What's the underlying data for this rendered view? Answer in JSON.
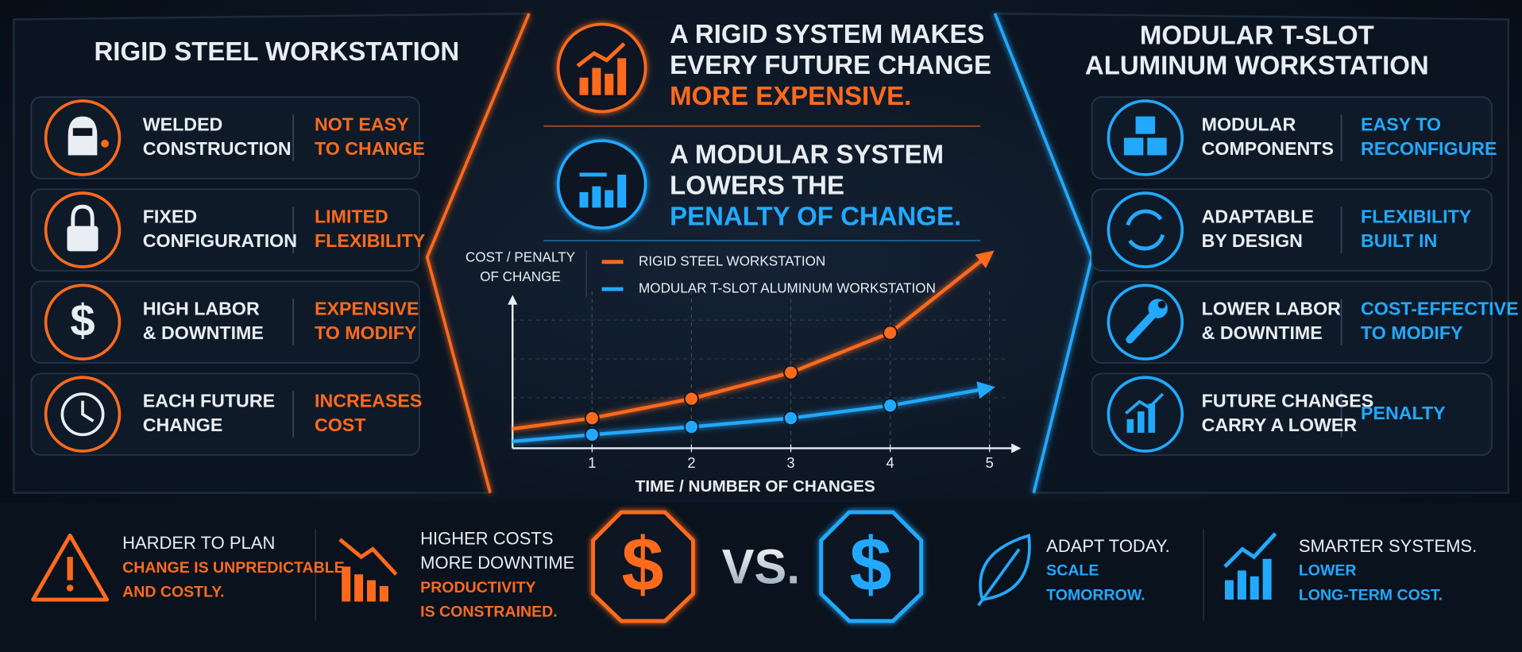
{
  "left_panel": {
    "title": "RIGID STEEL WORKSTATION",
    "rows": [
      {
        "label": [
          "WELDED",
          "CONSTRUCTION"
        ],
        "effect": [
          "NOT EASY",
          "TO CHANGE"
        ]
      },
      {
        "label": [
          "FIXED",
          "CONFIGURATION"
        ],
        "effect": [
          "LIMITED",
          "FLEXIBILITY"
        ]
      },
      {
        "label": [
          "HIGH LABOR",
          "& DOWNTIME"
        ],
        "effect": [
          "EXPENSIVE",
          "TO MODIFY"
        ]
      },
      {
        "label": [
          "EACH FUTURE",
          "CHANGE"
        ],
        "effect": [
          "INCREASES",
          "COST"
        ]
      }
    ]
  },
  "right_panel": {
    "title": [
      "MODULAR T-SLOT",
      "ALUMINUM WORKSTATION"
    ],
    "rows": [
      {
        "label": [
          "MODULAR",
          "COMPONENTS"
        ],
        "effect": [
          "EASY TO",
          "RECONFIGURE"
        ]
      },
      {
        "label": [
          "ADAPTABLE",
          "BY DESIGN"
        ],
        "effect": [
          "FLEXIBILITY",
          "BUILT IN"
        ]
      },
      {
        "label": [
          "LOWER LABOR",
          "& DOWNTIME"
        ],
        "effect": [
          "COST-EFFECTIVE",
          "TO MODIFY"
        ]
      },
      {
        "label": [
          "FUTURE CHANGES",
          "CARRY A LOWER"
        ],
        "effect": [
          "PENALTY"
        ]
      }
    ]
  },
  "headlines": [
    {
      "lines": [
        "A RIGID SYSTEM MAKES",
        "EVERY FUTURE CHANGE"
      ],
      "emphasis": [
        "MORE EXPENSIVE."
      ]
    },
    {
      "lines": [
        "A MODULAR SYSTEM",
        "LOWERS THE"
      ],
      "emphasis": [
        "PENALTY OF CHANGE."
      ]
    }
  ],
  "chart_data": {
    "type": "line",
    "y_label": [
      "COST / PENALTY",
      "OF CHANGE"
    ],
    "x_label": "TIME / NUMBER OF CHANGES",
    "x": [
      0.2,
      1,
      2,
      3,
      4,
      5
    ],
    "xlim": [
      0.2,
      5.2
    ],
    "xticks": [
      1,
      2,
      3,
      4,
      5
    ],
    "ylim": [
      0,
      100
    ],
    "grid": true,
    "series": [
      {
        "name": "RIGID STEEL WORKSTATION",
        "color": "#ff6a1c",
        "values": [
          10,
          15.5,
          25.5,
          39,
          59.5,
          100
        ]
      },
      {
        "name": "MODULAR T-SLOT ALUMINUM WORKSTATION",
        "color": "#22a9ff",
        "values": [
          3.5,
          7,
          11,
          15.5,
          22,
          31
        ]
      }
    ]
  },
  "bottom": {
    "items": [
      {
        "lines": [
          "HARDER TO PLAN"
        ],
        "emphasis": [
          "CHANGE IS UNPREDICTABLE",
          "AND COSTLY."
        ]
      },
      {
        "lines": [
          "HIGHER COSTS",
          "MORE DOWNTIME"
        ],
        "emphasis": [
          "PRODUCTIVITY",
          "IS CONSTRAINED."
        ]
      },
      {
        "lines": [
          "ADAPT TODAY."
        ],
        "emphasis": [
          "SCALE",
          "TOMORROW."
        ]
      },
      {
        "lines": [
          "SMARTER SYSTEMS."
        ],
        "emphasis": [
          "LOWER",
          "LONG-TERM COST."
        ]
      }
    ],
    "currency_symbol": "$",
    "versus": "VS."
  }
}
